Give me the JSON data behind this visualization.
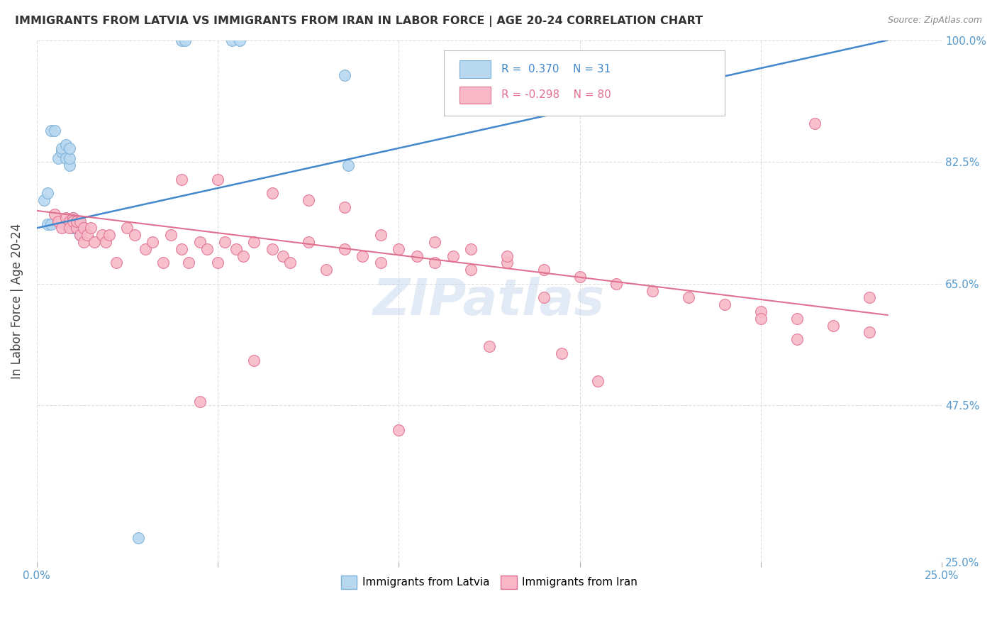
{
  "title": "IMMIGRANTS FROM LATVIA VS IMMIGRANTS FROM IRAN IN LABOR FORCE | AGE 20-24 CORRELATION CHART",
  "source": "Source: ZipAtlas.com",
  "ylabel": "In Labor Force | Age 20-24",
  "xlim": [
    0.0,
    0.25
  ],
  "ylim": [
    0.25,
    1.0
  ],
  "yticks": [
    0.25,
    0.475,
    0.65,
    0.825,
    1.0
  ],
  "ytick_labels": [
    "25.0%",
    "47.5%",
    "65.0%",
    "82.5%",
    "100.0%"
  ],
  "xticks": [
    0.0,
    0.05,
    0.1,
    0.15,
    0.2,
    0.25
  ],
  "xtick_labels": [
    "0.0%",
    "",
    "",
    "",
    "",
    "25.0%"
  ],
  "background_color": "#ffffff",
  "grid_color": "#dddddd",
  "latvia_fill": "#b8d8f0",
  "latvia_edge": "#7ab0d8",
  "iran_fill": "#f8b8c8",
  "iran_edge": "#e07090",
  "trendline_latvia": "#4488cc",
  "trendline_iran": "#e07090",
  "R_latvia": 0.37,
  "N_latvia": 31,
  "R_iran": -0.298,
  "N_iran": 80,
  "watermark": "ZIPatlas",
  "latvia_x": [
    0.002,
    0.003,
    0.004,
    0.005,
    0.006,
    0.007,
    0.007,
    0.008,
    0.008,
    0.009,
    0.009,
    0.009,
    0.01,
    0.01,
    0.01,
    0.01,
    0.011,
    0.011,
    0.012,
    0.013,
    0.04,
    0.041,
    0.054,
    0.056,
    0.085,
    0.086,
    0.028,
    0.003,
    0.004,
    0.008,
    0.012
  ],
  "latvia_y": [
    0.77,
    0.78,
    0.87,
    0.87,
    0.83,
    0.84,
    0.845,
    0.83,
    0.85,
    0.82,
    0.83,
    0.845,
    0.73,
    0.74,
    0.745,
    0.735,
    0.73,
    0.74,
    0.72,
    0.73,
    1.0,
    1.0,
    1.0,
    1.0,
    0.95,
    0.82,
    0.285,
    0.735,
    0.735,
    0.735,
    0.735
  ],
  "iran_x": [
    0.005,
    0.006,
    0.007,
    0.008,
    0.009,
    0.009,
    0.01,
    0.01,
    0.011,
    0.011,
    0.012,
    0.012,
    0.013,
    0.013,
    0.014,
    0.015,
    0.016,
    0.018,
    0.019,
    0.02,
    0.022,
    0.025,
    0.027,
    0.03,
    0.032,
    0.035,
    0.037,
    0.04,
    0.042,
    0.045,
    0.047,
    0.05,
    0.052,
    0.055,
    0.057,
    0.06,
    0.065,
    0.068,
    0.07,
    0.075,
    0.08,
    0.085,
    0.09,
    0.095,
    0.1,
    0.105,
    0.11,
    0.115,
    0.12,
    0.13,
    0.14,
    0.15,
    0.16,
    0.17,
    0.18,
    0.19,
    0.2,
    0.21,
    0.22,
    0.23,
    0.04,
    0.05,
    0.065,
    0.075,
    0.085,
    0.095,
    0.11,
    0.12,
    0.13,
    0.14,
    0.215,
    0.23,
    0.06,
    0.1,
    0.125,
    0.145,
    0.155,
    0.2,
    0.21,
    0.045
  ],
  "iran_y": [
    0.75,
    0.74,
    0.73,
    0.745,
    0.74,
    0.73,
    0.745,
    0.74,
    0.73,
    0.74,
    0.72,
    0.74,
    0.71,
    0.73,
    0.72,
    0.73,
    0.71,
    0.72,
    0.71,
    0.72,
    0.68,
    0.73,
    0.72,
    0.7,
    0.71,
    0.68,
    0.72,
    0.7,
    0.68,
    0.71,
    0.7,
    0.68,
    0.71,
    0.7,
    0.69,
    0.71,
    0.7,
    0.69,
    0.68,
    0.71,
    0.67,
    0.7,
    0.69,
    0.68,
    0.7,
    0.69,
    0.68,
    0.69,
    0.67,
    0.68,
    0.67,
    0.66,
    0.65,
    0.64,
    0.63,
    0.62,
    0.61,
    0.6,
    0.59,
    0.58,
    0.8,
    0.8,
    0.78,
    0.77,
    0.76,
    0.72,
    0.71,
    0.7,
    0.69,
    0.63,
    0.88,
    0.63,
    0.54,
    0.44,
    0.56,
    0.55,
    0.51,
    0.6,
    0.57,
    0.48
  ],
  "latvia_trendline_x": [
    0.0,
    0.235
  ],
  "latvia_trendline_y": [
    0.73,
    1.0
  ],
  "iran_trendline_x": [
    0.0,
    0.235
  ],
  "iran_trendline_y": [
    0.755,
    0.605
  ],
  "legend_label_latvia": "Immigrants from Latvia",
  "legend_label_iran": "Immigrants from Iran"
}
